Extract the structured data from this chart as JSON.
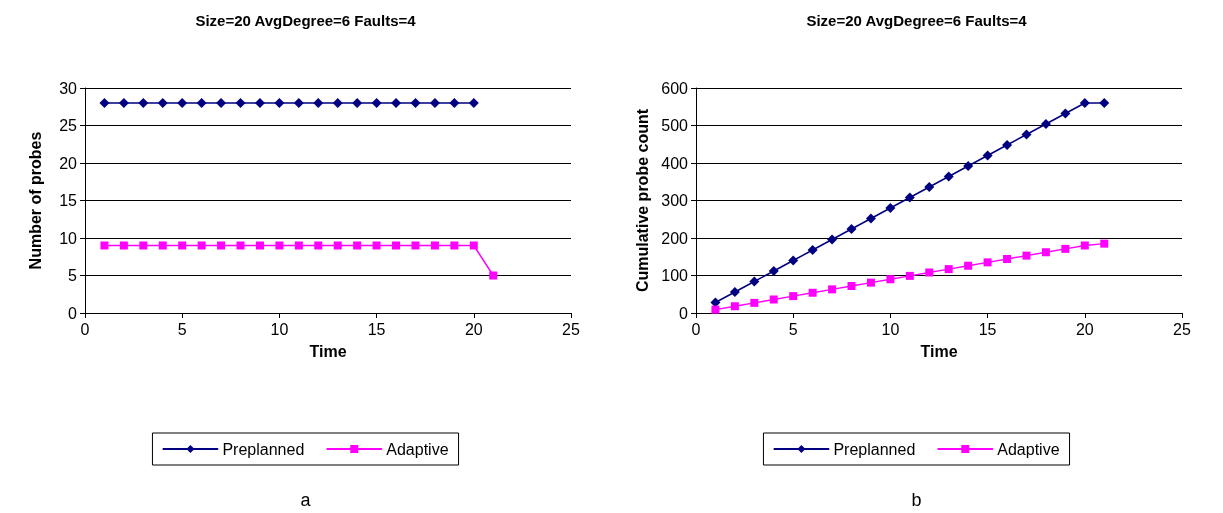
{
  "chart_data": [
    {
      "type": "line",
      "title": "Size=20 AvgDegree=6 Faults=4",
      "xlabel": "Time",
      "ylabel": "Number of probes",
      "xlim": [
        0,
        25
      ],
      "xticks": [
        0,
        5,
        10,
        15,
        20,
        25
      ],
      "ylim": [
        0,
        30
      ],
      "yticks": [
        0,
        5,
        10,
        15,
        20,
        25,
        30
      ],
      "grid": "y",
      "legend": "bottom",
      "annotations": [
        "a"
      ],
      "series": [
        {
          "name": "Preplanned",
          "color": "#000080",
          "marker": "diamond",
          "x": [
            1,
            2,
            3,
            4,
            5,
            6,
            7,
            8,
            9,
            10,
            11,
            12,
            13,
            14,
            15,
            16,
            17,
            18,
            19,
            20
          ],
          "values": [
            28,
            28,
            28,
            28,
            28,
            28,
            28,
            28,
            28,
            28,
            28,
            28,
            28,
            28,
            28,
            28,
            28,
            28,
            28,
            28
          ]
        },
        {
          "name": "Adaptive",
          "color": "#ff00ff",
          "marker": "square",
          "x": [
            1,
            2,
            3,
            4,
            5,
            6,
            7,
            8,
            9,
            10,
            11,
            12,
            13,
            14,
            15,
            16,
            17,
            18,
            19,
            20,
            21
          ],
          "values": [
            9,
            9,
            9,
            9,
            9,
            9,
            9,
            9,
            9,
            9,
            9,
            9,
            9,
            9,
            9,
            9,
            9,
            9,
            9,
            9,
            5
          ]
        }
      ]
    },
    {
      "type": "line",
      "title": "Size=20 AvgDegree=6 Faults=4",
      "xlabel": "Time",
      "ylabel": "Cumulative probe count",
      "xlim": [
        0,
        25
      ],
      "xticks": [
        0,
        5,
        10,
        15,
        20,
        25
      ],
      "ylim": [
        0,
        600
      ],
      "yticks": [
        0,
        100,
        200,
        300,
        400,
        500,
        600
      ],
      "grid": "y",
      "legend": "bottom",
      "annotations": [
        "b"
      ],
      "series": [
        {
          "name": "Preplanned",
          "color": "#000080",
          "marker": "diamond",
          "x": [
            1,
            2,
            3,
            4,
            5,
            6,
            7,
            8,
            9,
            10,
            11,
            12,
            13,
            14,
            15,
            16,
            17,
            18,
            19,
            20,
            21
          ],
          "values": [
            28,
            56,
            84,
            112,
            140,
            168,
            196,
            224,
            252,
            280,
            308,
            336,
            364,
            392,
            420,
            448,
            476,
            504,
            532,
            560,
            560
          ]
        },
        {
          "name": "Adaptive",
          "color": "#ff00ff",
          "marker": "square",
          "x": [
            1,
            2,
            3,
            4,
            5,
            6,
            7,
            8,
            9,
            10,
            11,
            12,
            13,
            14,
            15,
            16,
            17,
            18,
            19,
            20,
            21
          ],
          "values": [
            9,
            18,
            27,
            36,
            45,
            54,
            63,
            72,
            81,
            90,
            99,
            108,
            117,
            126,
            135,
            144,
            153,
            162,
            171,
            180,
            185
          ]
        }
      ]
    }
  ]
}
